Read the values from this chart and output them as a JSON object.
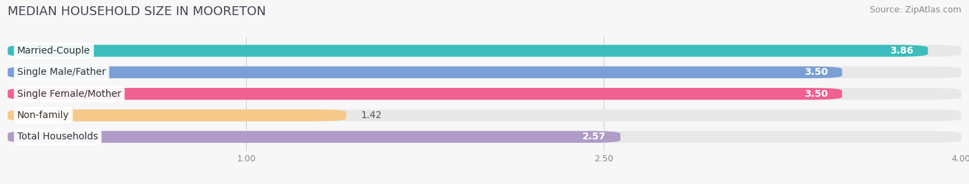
{
  "title": "MEDIAN HOUSEHOLD SIZE IN MOORETON",
  "source": "Source: ZipAtlas.com",
  "categories": [
    "Married-Couple",
    "Single Male/Father",
    "Single Female/Mother",
    "Non-family",
    "Total Households"
  ],
  "values": [
    3.86,
    3.5,
    3.5,
    1.42,
    2.57
  ],
  "bar_colors": [
    "#3cbcbc",
    "#7b9fd4",
    "#f06090",
    "#f5c98a",
    "#b09cc8"
  ],
  "xlim_min": 0,
  "xlim_max": 4.0,
  "xticks": [
    1.0,
    2.5,
    4.0
  ],
  "xtick_labels": [
    "1.00",
    "2.50",
    "4.00"
  ],
  "background_color": "#f7f7f7",
  "bar_bg_color": "#e8e8e8",
  "title_fontsize": 13,
  "source_fontsize": 9,
  "label_fontsize": 10,
  "value_fontsize": 10,
  "bar_height": 0.55,
  "value_inside_threshold": 2.0
}
